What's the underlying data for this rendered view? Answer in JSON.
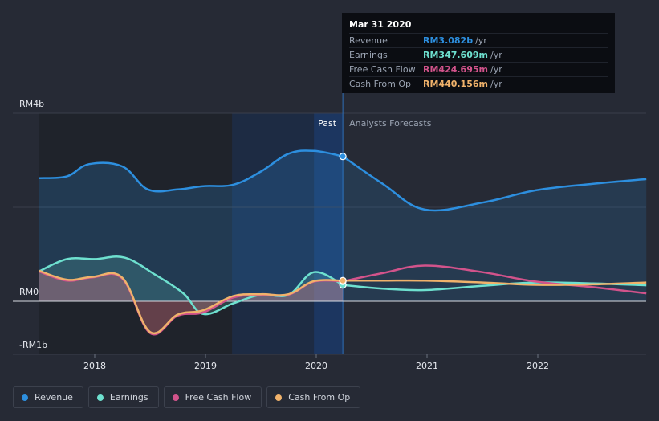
{
  "tooltip": {
    "date": "Mar 31 2020",
    "rows": [
      {
        "label": "Revenue",
        "value": "RM3.082b",
        "unit": "/yr",
        "color": "#2d8fdf"
      },
      {
        "label": "Earnings",
        "value": "RM347.609m",
        "unit": "/yr",
        "color": "#6ee0cf"
      },
      {
        "label": "Free Cash Flow",
        "value": "RM424.695m",
        "unit": "/yr",
        "color": "#d2538b"
      },
      {
        "label": "Cash From Op",
        "value": "RM440.156m",
        "unit": "/yr",
        "color": "#f0b26b"
      }
    ]
  },
  "legend": [
    {
      "label": "Revenue",
      "color": "#2d8fdf"
    },
    {
      "label": "Earnings",
      "color": "#6ee0cf"
    },
    {
      "label": "Free Cash Flow",
      "color": "#d2538b"
    },
    {
      "label": "Cash From Op",
      "color": "#f0b26b"
    }
  ],
  "chart_data": {
    "type": "line",
    "title": "",
    "xlabel": "",
    "ylabel": "",
    "xlim": [
      2017.5,
      2022.98
    ],
    "ylim": [
      -1000,
      4000
    ],
    "y_tick_labels": [
      {
        "value": 4000,
        "label": "RM4b"
      },
      {
        "value": 0,
        "label": "RM0"
      },
      {
        "value": -1000,
        "label": "-RM1b"
      }
    ],
    "x_ticks": [
      2018,
      2019,
      2020,
      2021,
      2022
    ],
    "x_tick_labels": [
      "2018",
      "2019",
      "2020",
      "2021",
      "2022"
    ],
    "divider_x": 2020.24,
    "past_label": "Past",
    "forecast_label": "Analysts Forecasts",
    "series": [
      {
        "name": "Revenue",
        "color": "#2d8fdf",
        "x": [
          2017.5,
          2017.75,
          2017.95,
          2018.25,
          2018.48,
          2018.75,
          2018.98,
          2019.25,
          2019.5,
          2019.75,
          2019.98,
          2020.24
        ],
        "values": [
          2620,
          2660,
          2920,
          2870,
          2380,
          2380,
          2450,
          2480,
          2760,
          3140,
          3200,
          3082
        ],
        "forecast_x": [
          2020.24,
          2020.6,
          2020.98,
          2021.5,
          2021.98,
          2022.5,
          2022.98
        ],
        "forecast_values": [
          3082,
          2500,
          1950,
          2100,
          2360,
          2500,
          2600
        ]
      },
      {
        "name": "Earnings",
        "color": "#6ee0cf",
        "x": [
          2017.5,
          2017.75,
          2018.0,
          2018.27,
          2018.55,
          2018.8,
          2018.98,
          2019.25,
          2019.5,
          2019.75,
          2019.98,
          2020.24
        ],
        "values": [
          640,
          900,
          900,
          930,
          560,
          170,
          -240,
          -40,
          140,
          140,
          620,
          347.609
        ],
        "forecast_x": [
          2020.24,
          2020.6,
          2020.98,
          2021.5,
          2021.98,
          2022.5,
          2022.98
        ],
        "forecast_values": [
          347.609,
          270,
          240,
          330,
          400,
          380,
          340
        ]
      },
      {
        "name": "Free Cash Flow",
        "color": "#d2538b",
        "x": [
          2017.5,
          2017.75,
          2017.98,
          2018.25,
          2018.5,
          2018.75,
          2018.98,
          2019.25,
          2019.5,
          2019.75,
          2019.98,
          2020.24
        ],
        "values": [
          630,
          440,
          510,
          480,
          -600,
          -270,
          -210,
          80,
          140,
          140,
          420,
          424.695
        ],
        "forecast_x": [
          2020.24,
          2020.6,
          2020.98,
          2021.5,
          2021.98,
          2022.5,
          2022.98
        ],
        "forecast_values": [
          424.695,
          600,
          760,
          620,
          420,
          300,
          170
        ]
      },
      {
        "name": "Cash From Op",
        "color": "#f0b26b",
        "x": [
          2017.5,
          2017.75,
          2017.98,
          2018.25,
          2018.5,
          2018.75,
          2018.98,
          2019.25,
          2019.5,
          2019.75,
          2019.98,
          2020.24
        ],
        "values": [
          650,
          460,
          520,
          500,
          -580,
          -250,
          -170,
          110,
          150,
          150,
          430,
          440.156
        ],
        "forecast_x": [
          2020.24,
          2020.6,
          2020.98,
          2021.5,
          2021.98,
          2022.5,
          2022.98
        ],
        "forecast_values": [
          440.156,
          440,
          440,
          400,
          350,
          360,
          400
        ]
      }
    ]
  }
}
